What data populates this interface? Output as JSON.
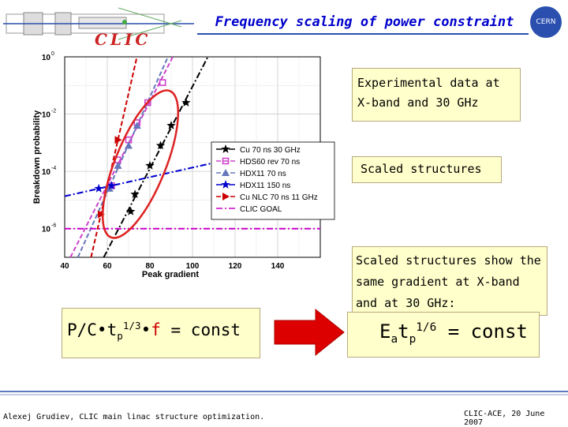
{
  "header": {
    "title": "Frequency scaling of power constraint",
    "logo_text": "CLIC",
    "cern_text": "CERN"
  },
  "notes": {
    "experimental": "Experimental data at X-band and 30 GHz",
    "scaled": "Scaled structures",
    "scaled_show": "Scaled structures show the same gradient at X-band and at 30 GHz:"
  },
  "formulas": {
    "pc": {
      "base": "P/C•t",
      "sub": "p",
      "sup": "1/3",
      "dot": "•",
      "f": "f",
      "rest": " = const"
    },
    "ea": {
      "e": "E",
      "sub_a": "a",
      "t": "t",
      "sub_p": "p",
      "sup": "1/6",
      "rest": " = const"
    }
  },
  "footer": {
    "left": "Alexej Grudiev, CLIC main linac structure optimization.",
    "right": "CLIC-ACE, 20 June 2007"
  },
  "colors": {
    "accent_blue": "#2a4fae",
    "title_blue": "#0000cc",
    "note_background": "#ffffcc",
    "arrow_red": "#dd0000",
    "ellipse_red": "#dd2222"
  },
  "chart_data": {
    "type": "scatter",
    "xlabel": "Peak gradient",
    "ylabel": "Breakdown probability",
    "xlim": [
      40,
      160
    ],
    "x_ticks": [
      40,
      60,
      80,
      100,
      120,
      140
    ],
    "y_log": true,
    "y_ticks": [
      {
        "label": "10",
        "exp": "0"
      },
      {
        "label": "10",
        "exp": "-2"
      },
      {
        "label": "10",
        "exp": "-4"
      },
      {
        "label": "10",
        "exp": "-6"
      }
    ],
    "grid": true,
    "legend_position": "right",
    "series": [
      {
        "name": "Cu 70 ns 30 GHz",
        "color": "#000000",
        "marker": "star",
        "line": "dash-dot",
        "points": [
          [
            71,
            -5.4
          ],
          [
            73,
            -4.8
          ],
          [
            80,
            -3.8
          ],
          [
            85,
            -3.1
          ],
          [
            90,
            -2.4
          ],
          [
            97,
            -1.6
          ]
        ]
      },
      {
        "name": "HDS60 rev 70 ns",
        "color": "#cc44cc",
        "marker": "square",
        "line": "dashed",
        "points": [
          [
            62,
            -4.5
          ],
          [
            65,
            -3.6
          ],
          [
            70,
            -2.9
          ],
          [
            74,
            -2.3
          ],
          [
            79,
            -1.6
          ],
          [
            86,
            -0.9
          ]
        ]
      },
      {
        "name": "HDX11 70 ns",
        "color": "#6677bb",
        "marker": "triangle",
        "line": "dashed",
        "points": [
          [
            61,
            -4.6
          ],
          [
            65,
            -3.8
          ],
          [
            70,
            -3.1
          ],
          [
            74,
            -2.4
          ]
        ]
      },
      {
        "name": "HDX11 150 ns",
        "color": "#0000cc",
        "marker": "star",
        "line": "dash-dot",
        "points": [
          [
            56,
            -4.6
          ],
          [
            62,
            -4.5
          ]
        ]
      },
      {
        "name": "Cu NLC 70 ns 11 GHz",
        "color": "#cc0000",
        "marker": "triangle-right",
        "line": "dashed",
        "points": [
          [
            57,
            -5.5
          ],
          [
            65,
            -2.9
          ]
        ]
      },
      {
        "name": "CLIC GOAL",
        "color": "#cc00cc",
        "marker": "none",
        "line": "dash-dot"
      }
    ]
  }
}
